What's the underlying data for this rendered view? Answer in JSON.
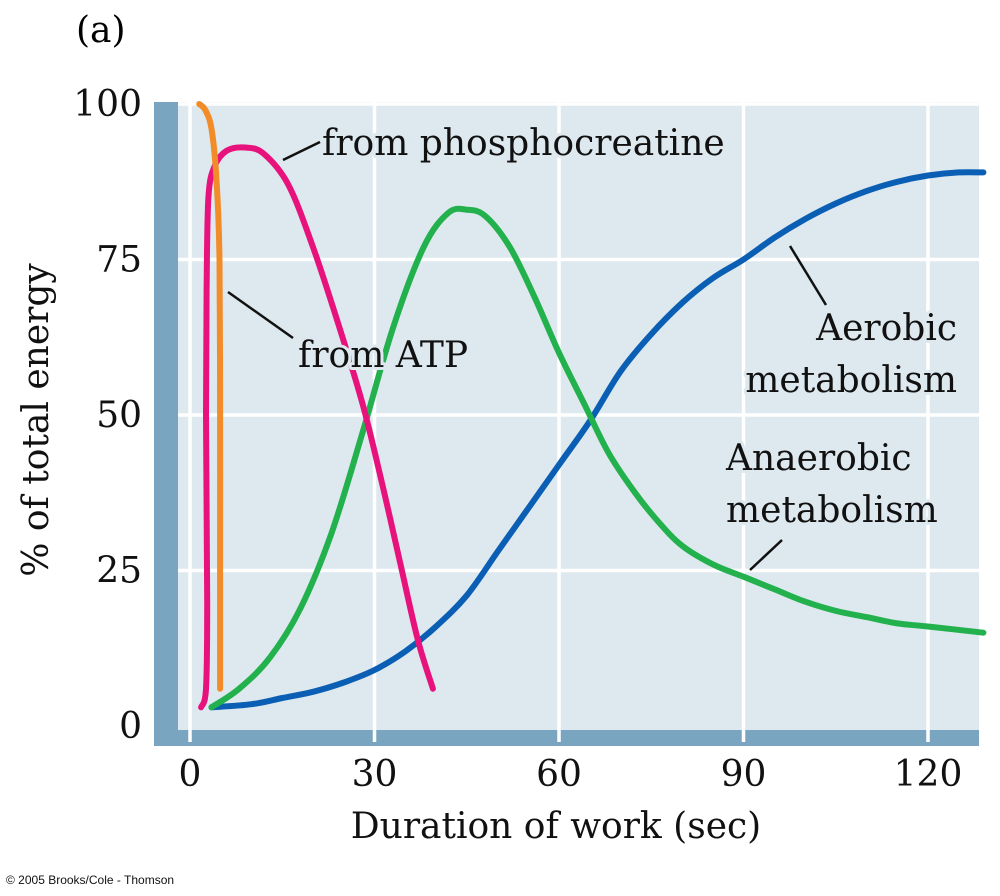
{
  "panel_label": "(a)",
  "copyright": "© 2005 Brooks/Cole - Thomson",
  "colors": {
    "plot_background": "#dde8ef",
    "axis_band": "#7aa5c0",
    "grid": "#ffffff",
    "from_atp": "#f28c28",
    "from_phosphocreatine": "#e8127d",
    "anaerobic": "#22b14c",
    "aerobic": "#0a5fb4"
  },
  "chart_data": {
    "type": "line",
    "xlabel": "Duration of work (sec)",
    "ylabel": "% of total energy",
    "xlim": [
      -5,
      129
    ],
    "ylim": [
      0,
      100
    ],
    "xticks": [
      0,
      30,
      60,
      90,
      120
    ],
    "yticks": [
      0,
      25,
      50,
      75,
      100
    ],
    "grid": true,
    "series": [
      {
        "name": "from ATP",
        "color": "#f28c28",
        "points": [
          [
            1.5,
            100
          ],
          [
            2.5,
            99
          ],
          [
            3.5,
            96
          ],
          [
            4.3,
            88
          ],
          [
            4.8,
            75
          ],
          [
            4.9,
            50
          ],
          [
            4.9,
            25
          ],
          [
            4.9,
            10
          ],
          [
            4.9,
            6
          ]
        ]
      },
      {
        "name": "from phosphocreatine",
        "color": "#e8127d",
        "points": [
          [
            1.8,
            3
          ],
          [
            2.6,
            6
          ],
          [
            2.8,
            20
          ],
          [
            2.6,
            50
          ],
          [
            2.7,
            70
          ],
          [
            3.0,
            85
          ],
          [
            4.0,
            90
          ],
          [
            6.0,
            92.5
          ],
          [
            9.0,
            93
          ],
          [
            12.0,
            92
          ],
          [
            16.0,
            87
          ],
          [
            20.0,
            77
          ],
          [
            24.0,
            65
          ],
          [
            28.0,
            52
          ],
          [
            31.0,
            40
          ],
          [
            34.0,
            27
          ],
          [
            37.0,
            14
          ],
          [
            39.5,
            6
          ]
        ]
      },
      {
        "name": "Anaerobic metabolism",
        "color": "#22b14c",
        "points": [
          [
            3.5,
            3
          ],
          [
            8,
            6
          ],
          [
            13,
            11
          ],
          [
            18,
            19
          ],
          [
            23,
            31
          ],
          [
            28,
            47
          ],
          [
            33,
            64
          ],
          [
            38,
            77
          ],
          [
            42,
            82.5
          ],
          [
            45,
            83
          ],
          [
            48,
            82
          ],
          [
            52,
            77
          ],
          [
            56,
            69
          ],
          [
            60,
            60
          ],
          [
            64,
            52
          ],
          [
            68,
            44
          ],
          [
            72,
            38
          ],
          [
            76,
            33
          ],
          [
            80,
            29
          ],
          [
            85,
            26
          ],
          [
            90,
            24
          ],
          [
            95,
            22
          ],
          [
            100,
            20
          ],
          [
            105,
            18.5
          ],
          [
            110,
            17.5
          ],
          [
            115,
            16.5
          ],
          [
            120,
            16
          ],
          [
            129,
            15
          ]
        ]
      },
      {
        "name": "Aerobic metabolism",
        "color": "#0a5fb4",
        "points": [
          [
            3.5,
            3
          ],
          [
            10,
            3.5
          ],
          [
            15,
            4.5
          ],
          [
            20,
            5.5
          ],
          [
            25,
            7
          ],
          [
            30,
            9
          ],
          [
            35,
            12
          ],
          [
            40,
            16
          ],
          [
            45,
            21
          ],
          [
            50,
            28
          ],
          [
            55,
            35
          ],
          [
            60,
            42
          ],
          [
            65,
            49
          ],
          [
            70,
            57
          ],
          [
            75,
            63
          ],
          [
            80,
            68
          ],
          [
            85,
            72
          ],
          [
            90,
            75
          ],
          [
            95,
            78.5
          ],
          [
            100,
            81.5
          ],
          [
            105,
            84
          ],
          [
            110,
            86
          ],
          [
            115,
            87.5
          ],
          [
            120,
            88.5
          ],
          [
            125,
            89
          ],
          [
            129,
            89
          ]
        ]
      }
    ],
    "annotations": {
      "phosphocreatine": "from phosphocreatine",
      "atp": "from ATP",
      "aerobic_line1": "Aerobic",
      "aerobic_line2": "metabolism",
      "anaerobic_line1": "Anaerobic",
      "anaerobic_line2": "metabolism"
    }
  }
}
